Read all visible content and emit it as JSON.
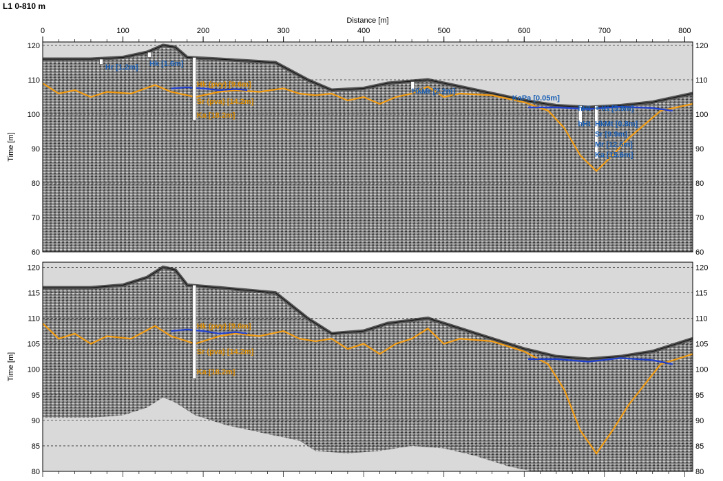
{
  "window_title": "L1 0-810 m",
  "colors": {
    "orange": "#f39c12",
    "blue": "#1f3fd0",
    "label_blue": "#1a5fb4",
    "label_orange": "#d98a00",
    "sky": "#d9d9d9",
    "radar_gray": "#777777"
  },
  "chart_data": [
    {
      "type": "line",
      "name": "top-panel",
      "xlabel": "Distance [m]",
      "ylabel": "Time [m]",
      "xlim": [
        0,
        810
      ],
      "ylim": [
        60,
        121
      ],
      "xticks": [
        "0",
        "100",
        "200",
        "300",
        "400",
        "500",
        "600",
        "700",
        "800"
      ],
      "yticks": [
        "60",
        "70",
        "80",
        "90",
        "100",
        "110",
        "120"
      ],
      "grid": "dashed-horizontal",
      "surface": {
        "x": [
          0,
          60,
          100,
          130,
          150,
          165,
          180,
          220,
          290,
          330,
          360,
          400,
          430,
          480,
          520,
          560,
          600,
          640,
          680,
          720,
          760,
          810
        ],
        "y": [
          116,
          116,
          116.5,
          118,
          120,
          119.5,
          116.5,
          116,
          115,
          110,
          107,
          107.5,
          109,
          110,
          108,
          106,
          104,
          102.5,
          102,
          102.5,
          103.5,
          106
        ]
      },
      "series": [
        {
          "color": "orange",
          "x": [
            0,
            20,
            40,
            60,
            80,
            110,
            140,
            160,
            190,
            220,
            240,
            270,
            300,
            320,
            340,
            360,
            380,
            400,
            420,
            440,
            460,
            480,
            500,
            520,
            560,
            600,
            630,
            650,
            670,
            690,
            710,
            730,
            750,
            770,
            790,
            810
          ],
          "y": [
            109,
            106,
            107,
            105,
            106.5,
            106,
            108.5,
            106.5,
            105,
            106.5,
            107,
            106.5,
            107.5,
            106,
            105.5,
            106,
            104,
            105,
            103,
            105,
            106,
            108,
            105,
            106,
            105.5,
            103.5,
            101,
            96,
            88,
            83.5,
            88,
            93,
            97,
            101,
            102,
            103
          ]
        },
        {
          "color": "blue",
          "x": [
            160,
            180,
            200,
            220,
            240,
            255
          ],
          "y": [
            107.5,
            107.8,
            107.5,
            107,
            107.3,
            107
          ]
        },
        {
          "color": "blue",
          "x": [
            605,
            640,
            680,
            720,
            760,
            785
          ],
          "y": [
            102,
            102,
            101.5,
            102.2,
            101.8,
            101
          ]
        }
      ],
      "annotations": [
        {
          "text": "Hr [1.2m]",
          "color": "label_blue",
          "x": 78,
          "y": 113
        },
        {
          "text": "Hk [1.6m]",
          "color": "label_blue",
          "x": 133,
          "y": 114
        },
        {
          "text": "Hk (pvy) [9.6m]",
          "color": "label_orange",
          "x": 192,
          "y": 108
        },
        {
          "text": "Sr (pva) [14.2m]",
          "color": "label_orange",
          "x": 192,
          "y": 103
        },
        {
          "text": "Ka [18.2m]",
          "color": "label_orange",
          "x": 192,
          "y": 99
        },
        {
          "text": "HkMr [2.2m]",
          "color": "label_blue",
          "x": 460,
          "y": 106
        },
        {
          "text": "KaPa [0.05m]",
          "color": "label_blue",
          "x": 585,
          "y": 104
        },
        {
          "text": "hHt",
          "color": "label_blue",
          "x": 667,
          "y": 101
        },
        {
          "text": "+ Kt [5.8m]",
          "color": "label_blue",
          "x": 688,
          "y": 101
        },
        {
          "text": "hHt",
          "color": "label_blue",
          "x": 667,
          "y": 96.5
        },
        {
          "text": "HkMt [0.8m]",
          "color": "label_blue",
          "x": 688,
          "y": 96.5
        },
        {
          "text": "Sr [9.9m]",
          "color": "label_blue",
          "x": 688,
          "y": 93.5
        },
        {
          "text": "Mr [12.6m]",
          "color": "label_blue",
          "x": 688,
          "y": 90.5
        },
        {
          "text": "Ka [15.6m]",
          "color": "label_blue",
          "x": 688,
          "y": 87.5
        }
      ],
      "boreholes": [
        {
          "x": 73,
          "top": 116,
          "bottom": 114.5
        },
        {
          "x": 133,
          "top": 118,
          "bottom": 116.5
        },
        {
          "x": 189,
          "top": 116.5,
          "bottom": 98.2
        },
        {
          "x": 461,
          "top": 109.5,
          "bottom": 107.2
        },
        {
          "x": 670,
          "top": 102.5,
          "bottom": 97
        },
        {
          "x": 690,
          "top": 102.5,
          "bottom": 87
        }
      ]
    },
    {
      "type": "line",
      "name": "bottom-panel",
      "ylabel": "Time [m]",
      "xlim": [
        0,
        810
      ],
      "ylim": [
        80,
        121
      ],
      "yticks": [
        "80",
        "85",
        "90",
        "95",
        "100",
        "105",
        "110",
        "115",
        "120"
      ],
      "grid": "dashed-horizontal",
      "surface": {
        "x": [
          0,
          60,
          100,
          130,
          150,
          165,
          180,
          220,
          290,
          330,
          360,
          400,
          430,
          480,
          520,
          560,
          600,
          640,
          680,
          720,
          760,
          810
        ],
        "y": [
          116,
          116,
          116.5,
          118,
          120,
          119.5,
          116.5,
          116,
          115,
          110,
          107,
          107.5,
          109,
          110,
          108,
          106,
          104,
          102.5,
          102,
          102.5,
          103.5,
          106
        ]
      },
      "data_bottom": {
        "x": [
          0,
          60,
          100,
          130,
          150,
          165,
          190,
          230,
          290,
          320,
          340,
          380,
          420,
          460,
          500,
          540,
          580,
          610,
          650,
          700,
          760,
          810
        ],
        "y": [
          90.5,
          90.5,
          91,
          92.5,
          94.5,
          93.5,
          91,
          89,
          87,
          86,
          84,
          83.5,
          84,
          85,
          84.5,
          83,
          81,
          80,
          80,
          80,
          80,
          80
        ]
      },
      "series": [
        {
          "color": "orange",
          "x": [
            0,
            20,
            40,
            60,
            80,
            110,
            140,
            160,
            190,
            220,
            240,
            270,
            300,
            320,
            340,
            360,
            380,
            400,
            420,
            440,
            460,
            480,
            500,
            520,
            560,
            600,
            630,
            650,
            670,
            690,
            710,
            730,
            750,
            770,
            790,
            810
          ],
          "y": [
            109,
            106,
            107,
            105,
            106.5,
            106,
            108.5,
            106.5,
            105,
            106.5,
            107,
            106.5,
            107.5,
            106,
            105.5,
            106,
            104,
            105,
            103,
            105,
            106,
            108,
            105,
            106,
            105.5,
            103.5,
            101,
            96,
            88,
            83.5,
            88,
            93,
            97,
            101,
            102,
            103
          ]
        },
        {
          "color": "blue",
          "x": [
            160,
            180,
            200,
            220,
            240,
            255
          ],
          "y": [
            107.5,
            107.8,
            107.5,
            107,
            107.3,
            107
          ]
        },
        {
          "color": "blue",
          "x": [
            605,
            640,
            680,
            720,
            760,
            785
          ],
          "y": [
            102,
            102,
            101.5,
            102.2,
            101.8,
            101
          ]
        }
      ],
      "annotations": [
        {
          "text": "Hk (pvy) [9.6m]",
          "color": "label_orange",
          "x": 192,
          "y": 108
        },
        {
          "text": "Sr (pva) [14.2m]",
          "color": "label_orange",
          "x": 192,
          "y": 103
        },
        {
          "text": "Ka [18.2m]",
          "color": "label_orange",
          "x": 192,
          "y": 99
        }
      ],
      "boreholes": [
        {
          "x": 189,
          "top": 116.5,
          "bottom": 98.2
        }
      ]
    }
  ]
}
